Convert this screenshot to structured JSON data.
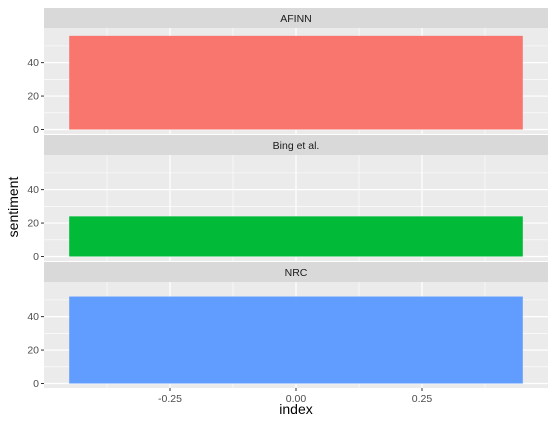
{
  "chart_data": {
    "type": "bar",
    "facets": [
      {
        "label": "AFINN",
        "x": 0,
        "value": 56,
        "color": "#F8766D"
      },
      {
        "label": "Bing et al.",
        "x": 0,
        "value": 24,
        "color": "#00BA38"
      },
      {
        "label": "NRC",
        "x": 0,
        "value": 52,
        "color": "#619CFF"
      }
    ],
    "xlabel": "index",
    "ylabel": "sentiment",
    "xlim": [
      -0.5,
      0.5
    ],
    "ylim": [
      0,
      58
    ],
    "xticks": [
      -0.25,
      0.0,
      0.25
    ],
    "xtick_labels": [
      "-0.25",
      "0.00",
      "0.25"
    ],
    "yticks": [
      0,
      20,
      40
    ],
    "ytick_labels": [
      "0",
      "20",
      "40"
    ],
    "bar_width": 0.9,
    "grid": true,
    "legend": "none",
    "panel_background": "#EBEBEB",
    "strip_background": "#D9D9D9",
    "grid_color": "#FFFFFF"
  }
}
